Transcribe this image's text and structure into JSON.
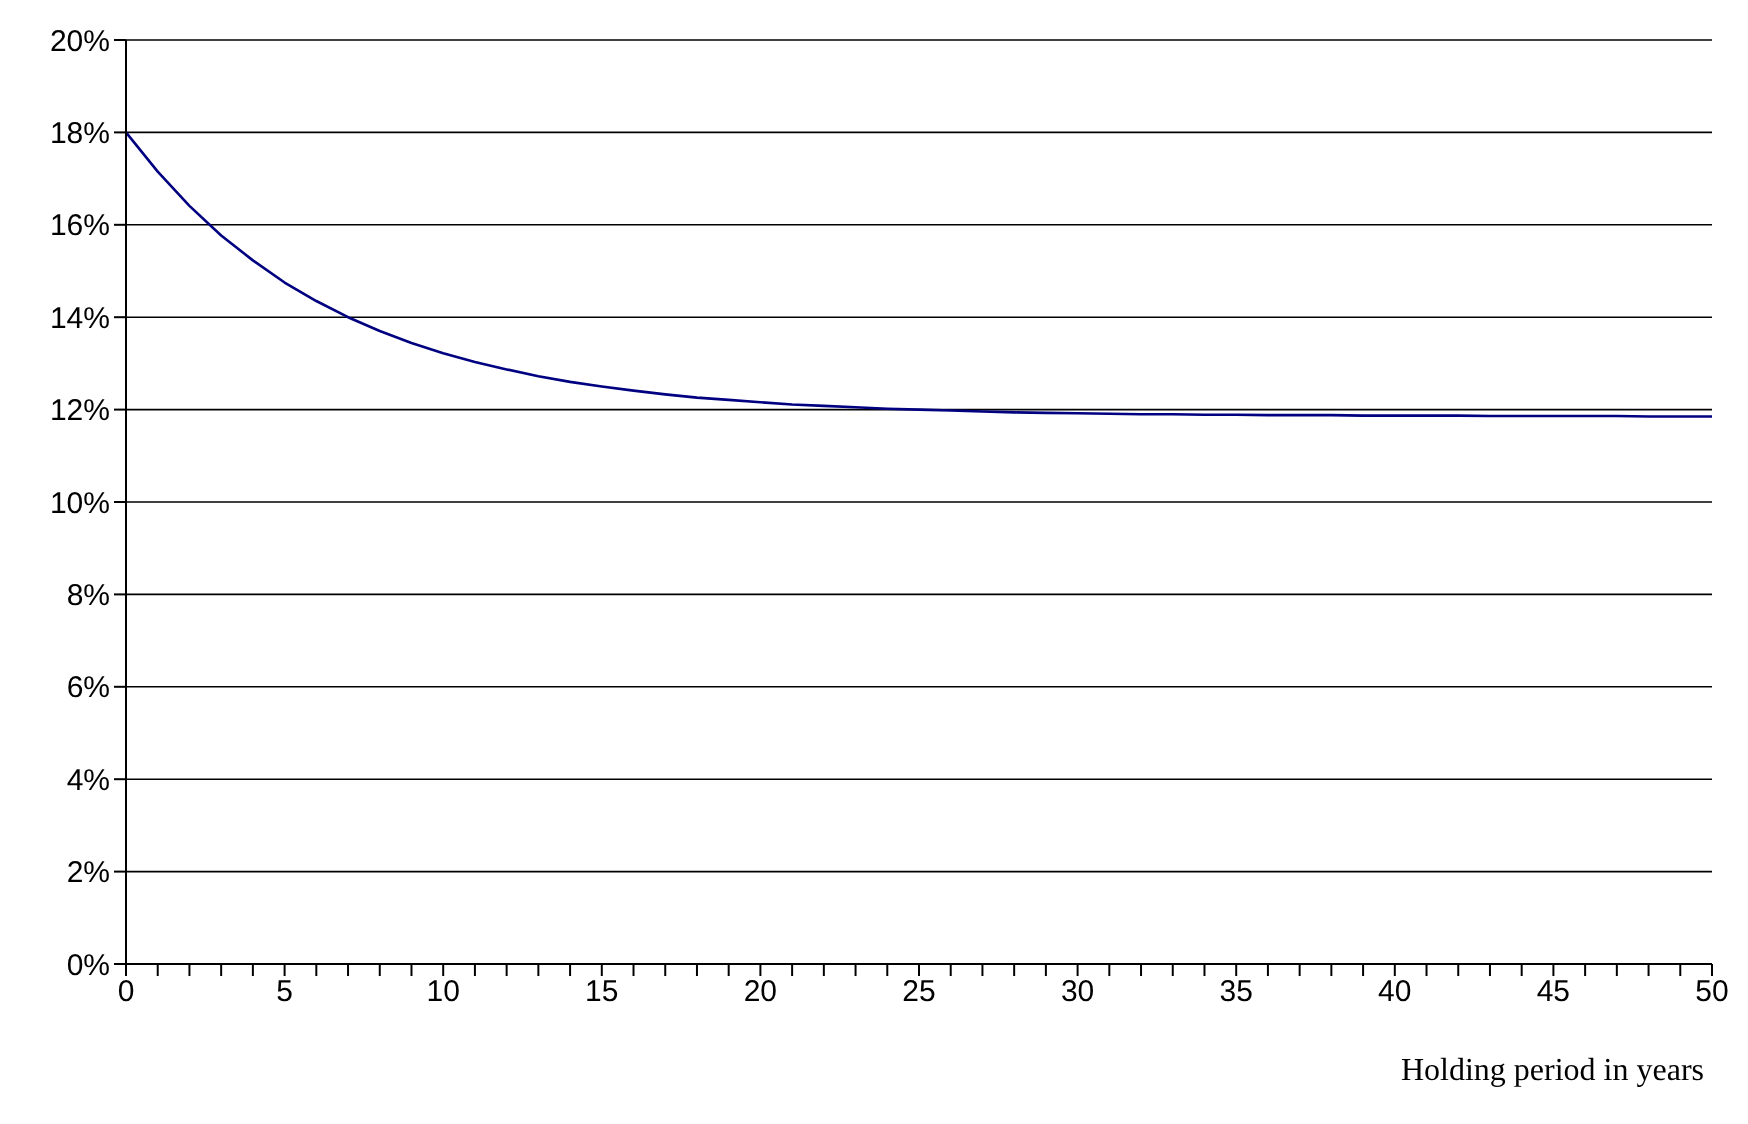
{
  "chart_data": {
    "type": "line",
    "xlabel": "Holding period in years",
    "categories": [
      "0",
      null,
      null,
      null,
      null,
      "5",
      null,
      null,
      null,
      null,
      "10",
      null,
      null,
      null,
      null,
      "15",
      null,
      null,
      null,
      null,
      "20",
      null,
      null,
      null,
      null,
      "25",
      null,
      null,
      null,
      null,
      "30",
      null,
      null,
      null,
      null,
      "35",
      null,
      null,
      null,
      null,
      "40",
      null,
      null,
      null,
      null,
      "45",
      null,
      null,
      null,
      null,
      "50"
    ],
    "series": [
      {
        "color": "#000080",
        "values": [
          18.0,
          17.15,
          16.41,
          15.77,
          15.23,
          14.75,
          14.35,
          14.0,
          13.7,
          13.44,
          13.22,
          13.03,
          12.87,
          12.72,
          12.6,
          12.5,
          12.41,
          12.33,
          12.26,
          12.21,
          12.16,
          12.11,
          12.08,
          12.05,
          12.02,
          12.0,
          11.98,
          11.96,
          11.94,
          11.93,
          11.92,
          11.91,
          11.9,
          11.9,
          11.89,
          11.89,
          11.88,
          11.88,
          11.88,
          11.87,
          11.87,
          11.87,
          11.87,
          11.86,
          11.86,
          11.86,
          11.86,
          11.86,
          11.85,
          11.85,
          11.85
        ]
      }
    ],
    "ylim": [
      0,
      20
    ],
    "yticks": [
      {
        "value": 0,
        "label": "0%"
      },
      {
        "value": 2,
        "label": "2%"
      },
      {
        "value": 4,
        "label": "4%"
      },
      {
        "value": 6,
        "label": "6%"
      },
      {
        "value": 8,
        "label": "8%"
      },
      {
        "value": 10,
        "label": "10%"
      },
      {
        "value": 12,
        "label": "12%"
      },
      {
        "value": 14,
        "label": "14%"
      },
      {
        "value": 16,
        "label": "16%"
      },
      {
        "value": 18,
        "label": "18%"
      },
      {
        "value": 20,
        "label": "20%"
      }
    ],
    "grid": "y",
    "marker": "none",
    "line_style": "solid"
  }
}
